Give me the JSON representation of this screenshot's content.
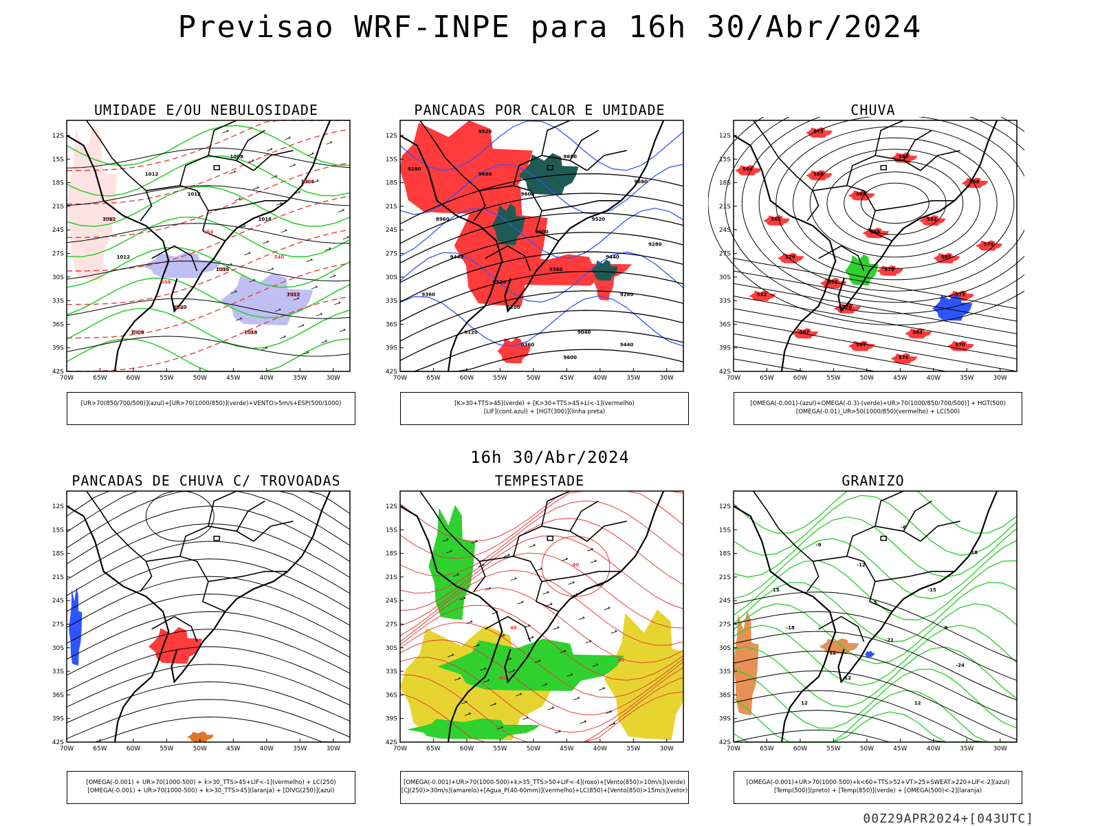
{
  "title": "Previsao WRF-INPE  para 16h 30/Abr/2024",
  "mid_title": "16h 30/Abr/2024",
  "footer": "00Z29APR2024+[043UTC]",
  "axes": {
    "lat_labels": [
      "12S",
      "15S",
      "18S",
      "21S",
      "24S",
      "27S",
      "30S",
      "33S",
      "36S",
      "39S",
      "42S"
    ],
    "lon_labels": [
      "70W",
      "65W",
      "60W",
      "55W",
      "50W",
      "45W",
      "40W",
      "35W",
      "30W"
    ]
  },
  "panels": [
    {
      "title": "UMIDADE E/OU NEBULOSIDADE",
      "legend": [
        "[UR>70(850/700/500)](azul)+[UR>70(1000/850)](verde)+VENTO>5m/s+ESP(500/1000)"
      ],
      "contour_labels": [
        "1008",
        "1012",
        "1012",
        "1016",
        "1012",
        "1016",
        "1012",
        "1020",
        "1008",
        "1016",
        "1012",
        "1004"
      ],
      "red_labels": [
        "576",
        "570",
        "564",
        "558",
        "552",
        "546",
        "570",
        "564",
        "558",
        "540"
      ]
    },
    {
      "title": "PANCADAS POR CALOR E UMIDADE",
      "legend": [
        "[K>30+TTS>45](verde) + [K>30+TTS>45+LI<-1](vermelho)",
        "[LIF](cont.azul) + [HGT(300)](linha preta)"
      ],
      "contour_labels": [
        "9680",
        "9680",
        "9600",
        "9520",
        "9440",
        "9360",
        "9280",
        "9200",
        "9120",
        "9040",
        "8960",
        "9680",
        "9600",
        "9520",
        "9440",
        "9360",
        "9280",
        "9600",
        "9520",
        "9440",
        "9360",
        "9280"
      ]
    },
    {
      "title": "CHUVA",
      "legend": [
        "[OMEGA(-0.001)-(azul)+OMEGA(-0.3)-(verde)+UR>70(1000/850/700/500)] + HGT(500)",
        "[OMEGA(-0.01)_UR>50(1000/850)(vermelho) + LC(500)"
      ],
      "contour_labels": [
        "588",
        "588",
        "585",
        "582",
        "579",
        "576",
        "573",
        "570",
        "567",
        "564",
        "561",
        "558",
        "555",
        "552",
        "585",
        "582",
        "579",
        "576",
        "573",
        "570",
        "567",
        "564"
      ]
    },
    {
      "title": "PANCADAS DE CHUVA C/ TROVOADAS",
      "legend": [
        "[OMEGA(-0.001) + UR>70(1000-500) + k>30_TTS>45+LIF<-1](vermelho) + LC(250)",
        "[OMEGA(-0.001) + UR>70(1000-500) + k>30_TTS>45](laranja) + [DIVG(250)](azul)"
      ]
    },
    {
      "title": "TEMPESTADE",
      "legend": [
        "[OMEGA(-0.001)+UR>70(1000-500)+k>35_TTS>50+LIF<-4](roxo)+[Vento(850)>10m/s](verde)",
        "[CJ(250)>30m/s](amarelo)+[Agua_P(40-60mm)](vermelho)+LC(850)+[Vento(850)>15m/s](vetor)"
      ],
      "contour_labels": [
        "40",
        "40",
        "40",
        "40"
      ]
    },
    {
      "title": "GRANIZO",
      "legend": [
        "[OMEGA(-0.001)+UR>70(1000-500)+k<60+TTS>52+VT>25+SWEAT>220+LIF<-2](azul)",
        "[Temp(500)](preto) + [Temp(850)](verde) + [OMEGA(500)<-2](laranja)"
      ],
      "contour_labels": [
        "-6",
        "-9",
        "-12",
        "-15",
        "-18",
        "-21",
        "-24",
        "-12",
        "12",
        "12",
        "15",
        "18",
        "3",
        "12",
        "9"
      ]
    }
  ],
  "colors": {
    "red": "#ff3b3b",
    "green": "#2fd12f",
    "darkgreen": "#1f5b55",
    "blue": "#2f55ff",
    "lavender": "#b8b8f2",
    "yellow": "#e6d531",
    "orange": "#e0752a",
    "contour_red": "#e83a3a"
  }
}
